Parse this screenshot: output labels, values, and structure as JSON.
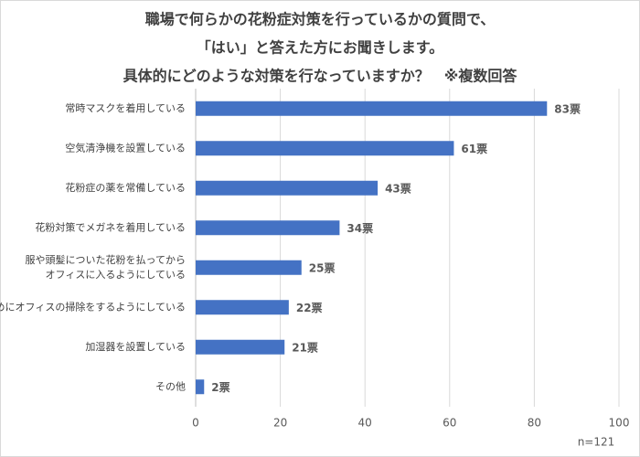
{
  "chart_data": {
    "type": "bar",
    "orientation": "horizontal",
    "title": [
      "職場で何らかの花粉症対策を行っているかの質問で、",
      "「はい」と答えた方にお聞きします。",
      "具体的にどのような対策を行なっていますか？　※複数回答"
    ],
    "categories": [
      "常時マスクを着用している",
      "空気清浄機を設置している",
      "花粉症の薬を常備している",
      "花粉対策でメガネを着用している",
      "服や頭髪についた花粉を払ってから\nオフィスに入るようにしている",
      "こまめにオフィスの掃除をするようにしている",
      "加湿器を設置している",
      "その他"
    ],
    "values": [
      83,
      61,
      43,
      34,
      25,
      22,
      21,
      2
    ],
    "value_labels": [
      "83票",
      "61票",
      "43票",
      "34票",
      "25票",
      "22票",
      "21票",
      "2票"
    ],
    "color": "#4472c4",
    "xlim": [
      0,
      100
    ],
    "xticks": [
      0,
      20,
      40,
      60,
      80,
      100
    ],
    "grid": true,
    "note": "n=121"
  }
}
